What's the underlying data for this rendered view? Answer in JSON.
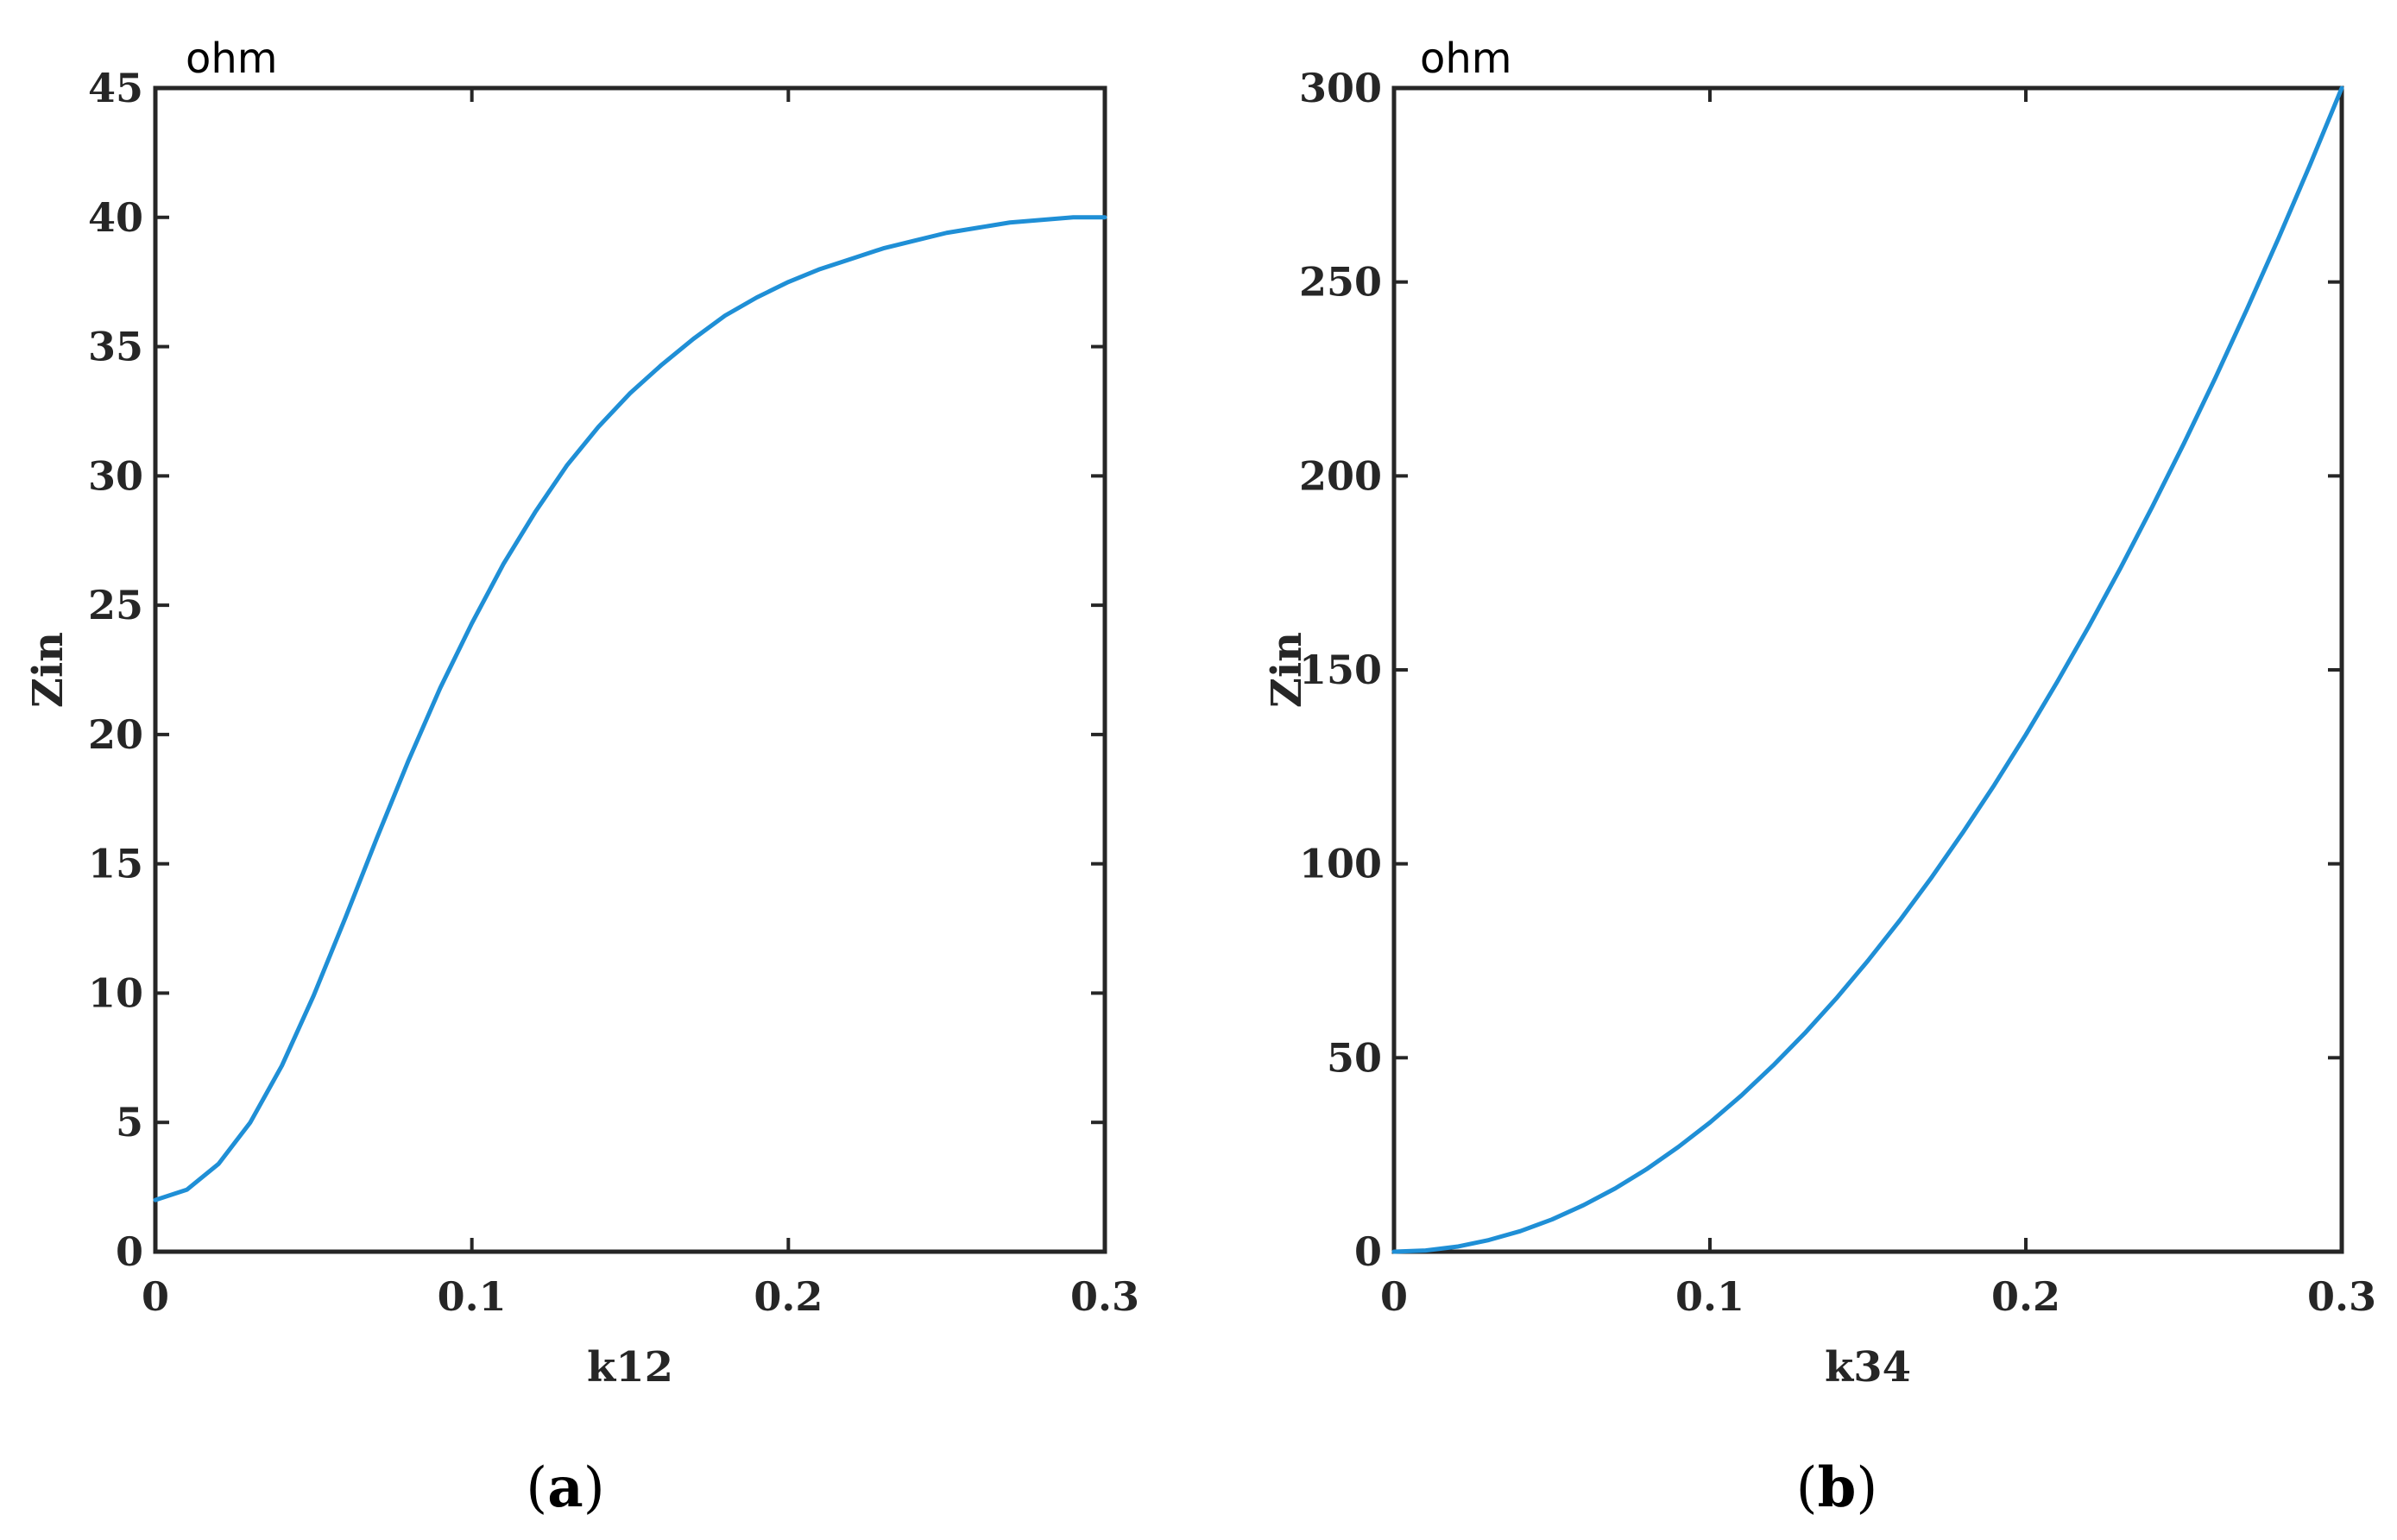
{
  "chart_data": [
    {
      "type": "line",
      "unit_label": "ohm",
      "xlabel": "k12",
      "ylabel": "Zin",
      "xlim": [
        0,
        0.3
      ],
      "ylim": [
        0,
        45
      ],
      "xticks": [
        0,
        0.1,
        0.2,
        0.3
      ],
      "xtick_labels": [
        "0",
        "0.1",
        "0.2",
        "0.3"
      ],
      "yticks": [
        0,
        5,
        10,
        15,
        20,
        25,
        30,
        35,
        40,
        45
      ],
      "ytick_labels": [
        "0",
        "5",
        "10",
        "15",
        "20",
        "25",
        "30",
        "35",
        "40",
        "45"
      ],
      "caption": {
        "open": "(",
        "letter": "a",
        "close": ")"
      },
      "series": [
        {
          "color": "#1f8fd6",
          "x": [
            0,
            0.01,
            0.02,
            0.03,
            0.04,
            0.05,
            0.06,
            0.07,
            0.08,
            0.09,
            0.1,
            0.11,
            0.12,
            0.13,
            0.14,
            0.15,
            0.16,
            0.17,
            0.18,
            0.19,
            0.2,
            0.21,
            0.22,
            0.23,
            0.24,
            0.25,
            0.26,
            0.27,
            0.28,
            0.29,
            0.3
          ],
          "y": [
            2.0,
            2.4,
            3.4,
            5.0,
            7.2,
            9.9,
            12.9,
            16.0,
            19.0,
            21.8,
            24.3,
            26.6,
            28.6,
            30.4,
            31.9,
            33.2,
            34.3,
            35.3,
            36.2,
            36.9,
            37.5,
            38.0,
            38.4,
            38.8,
            39.1,
            39.4,
            39.6,
            39.8,
            39.9,
            40.0,
            40.0
          ]
        }
      ]
    },
    {
      "type": "line",
      "unit_label": "ohm",
      "xlabel": "k34",
      "ylabel": "Zin",
      "xlim": [
        0,
        0.3
      ],
      "ylim": [
        0,
        300
      ],
      "xticks": [
        0,
        0.1,
        0.2,
        0.3
      ],
      "xtick_labels": [
        "0",
        "0.1",
        "0.2",
        "0.3"
      ],
      "yticks": [
        0,
        50,
        100,
        150,
        200,
        250,
        300
      ],
      "ytick_labels": [
        "0",
        "50",
        "100",
        "150",
        "200",
        "250",
        "300"
      ],
      "caption": {
        "open": "(",
        "letter": "b",
        "close": ")"
      },
      "series": [
        {
          "color": "#1f8fd6",
          "x": [
            0,
            0.01,
            0.02,
            0.03,
            0.04,
            0.05,
            0.06,
            0.07,
            0.08,
            0.09,
            0.1,
            0.11,
            0.12,
            0.13,
            0.14,
            0.15,
            0.16,
            0.17,
            0.18,
            0.19,
            0.2,
            0.21,
            0.22,
            0.23,
            0.24,
            0.25,
            0.26,
            0.27,
            0.28,
            0.29,
            0.3
          ],
          "y": [
            0,
            0.3,
            1.3,
            3.0,
            5.3,
            8.3,
            12.0,
            16.3,
            21.3,
            27.0,
            33.3,
            40.3,
            48.0,
            56.3,
            65.3,
            75.0,
            85.3,
            96.3,
            108.0,
            120.3,
            133.3,
            147.0,
            161.3,
            176.3,
            192.0,
            208.3,
            225.3,
            243.0,
            261.3,
            280.3,
            300.0
          ]
        }
      ]
    }
  ]
}
